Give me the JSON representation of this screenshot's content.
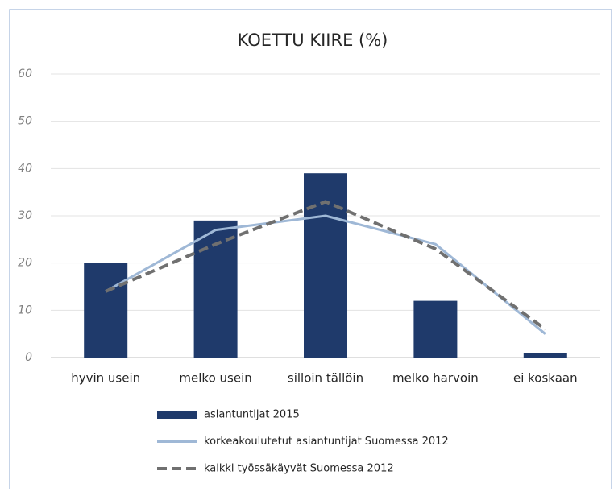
{
  "chart_data": {
    "type": "bar",
    "title": "KOETTU KIIRE (%)",
    "categories": [
      "hyvin usein",
      "melko usein",
      "silloin tällöin",
      "melko harvoin",
      "ei koskaan"
    ],
    "series": [
      {
        "name": "asiantuntijat 2015",
        "type": "bar",
        "color": "#1f3a6b",
        "values": [
          20,
          29,
          39,
          12,
          1
        ]
      },
      {
        "name": "korkeakoulutetut asiantuntijat Suomessa 2012",
        "type": "line",
        "color": "#9fb8d6",
        "dashed": false,
        "values": [
          14,
          27,
          30,
          24,
          5
        ]
      },
      {
        "name": "kaikki työssäkäyvät Suomessa 2012",
        "type": "line",
        "color": "#707070",
        "dashed": true,
        "values": [
          14,
          24,
          33,
          23,
          6
        ]
      }
    ],
    "ylim": [
      0,
      60
    ],
    "yticks": [
      0,
      10,
      20,
      30,
      40,
      50,
      60
    ],
    "grid": true,
    "legend": "bottom"
  }
}
